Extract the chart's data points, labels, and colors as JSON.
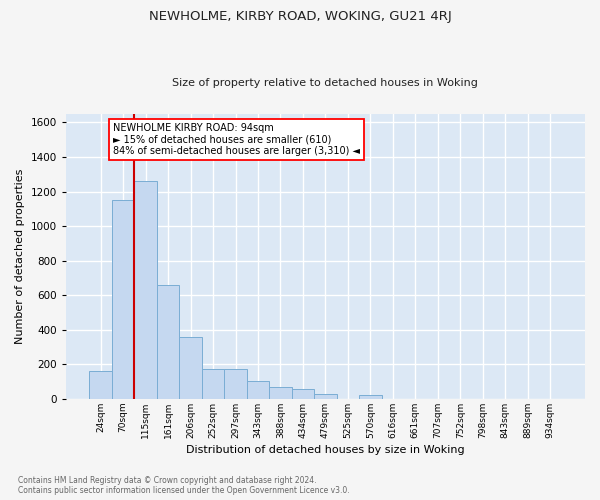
{
  "title": "NEWHOLME, KIRBY ROAD, WOKING, GU21 4RJ",
  "subtitle": "Size of property relative to detached houses in Woking",
  "xlabel": "Distribution of detached houses by size in Woking",
  "ylabel": "Number of detached properties",
  "footnote": "Contains HM Land Registry data © Crown copyright and database right 2024.\nContains public sector information licensed under the Open Government Licence v3.0.",
  "categories": [
    "24sqm",
    "70sqm",
    "115sqm",
    "161sqm",
    "206sqm",
    "252sqm",
    "297sqm",
    "343sqm",
    "388sqm",
    "434sqm",
    "479sqm",
    "525sqm",
    "570sqm",
    "616sqm",
    "661sqm",
    "707sqm",
    "752sqm",
    "798sqm",
    "843sqm",
    "889sqm",
    "934sqm"
  ],
  "values": [
    160,
    1150,
    1260,
    660,
    360,
    175,
    175,
    105,
    70,
    60,
    30,
    0,
    25,
    0,
    0,
    0,
    0,
    0,
    0,
    0,
    0
  ],
  "bar_color": "#c5d8f0",
  "bar_edge_color": "#7aadd4",
  "ylim": [
    0,
    1650
  ],
  "yticks": [
    0,
    200,
    400,
    600,
    800,
    1000,
    1200,
    1400,
    1600
  ],
  "red_line_x": 1.5,
  "annotation_line1": "NEWHOLME KIRBY ROAD: 94sqm",
  "annotation_line2": "► 15% of detached houses are smaller (610)",
  "annotation_line3": "84% of semi-detached houses are larger (3,310) ◄",
  "background_color": "#dce8f5",
  "grid_color": "#ffffff"
}
